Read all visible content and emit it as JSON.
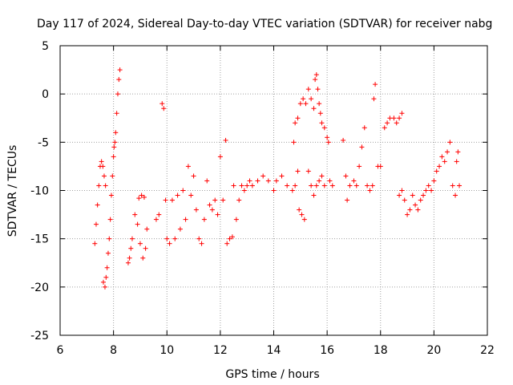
{
  "chart_data": {
    "type": "scatter",
    "title": "Day 117 of 2024, Sidereal Day-to-day VTEC variation (SDTVAR) for receiver nabg",
    "xlabel": "GPS time / hours",
    "ylabel": "SDTVAR / TECUs",
    "xlim": [
      6,
      22
    ],
    "ylim": [
      -25,
      5
    ],
    "x_ticks": [
      6,
      8,
      10,
      12,
      14,
      16,
      18,
      20,
      22
    ],
    "y_ticks": [
      5,
      0,
      -5,
      -10,
      -15,
      -20,
      -25
    ],
    "grid": true,
    "marker": "+",
    "marker_color": "#ff0000",
    "series": [
      {
        "name": "SDTVAR",
        "points": [
          [
            7.3,
            -15.5
          ],
          [
            7.35,
            -13.5
          ],
          [
            7.4,
            -11.5
          ],
          [
            7.45,
            -9.5
          ],
          [
            7.5,
            -7.5
          ],
          [
            7.55,
            -7.0
          ],
          [
            7.6,
            -7.5
          ],
          [
            7.65,
            -8.5
          ],
          [
            7.7,
            -9.5
          ],
          [
            7.62,
            -19.5
          ],
          [
            7.68,
            -20.0
          ],
          [
            7.72,
            -19.0
          ],
          [
            7.76,
            -18.0
          ],
          [
            7.8,
            -16.5
          ],
          [
            7.84,
            -15.0
          ],
          [
            7.88,
            -13.0
          ],
          [
            7.92,
            -10.5
          ],
          [
            7.96,
            -8.5
          ],
          [
            8.0,
            -6.5
          ],
          [
            8.02,
            -5.5
          ],
          [
            8.05,
            -5.0
          ],
          [
            8.08,
            -4.0
          ],
          [
            8.12,
            -2.0
          ],
          [
            8.16,
            0.0
          ],
          [
            8.2,
            1.5
          ],
          [
            8.24,
            2.5
          ],
          [
            8.55,
            -17.5
          ],
          [
            8.6,
            -17.0
          ],
          [
            8.65,
            -16.0
          ],
          [
            8.7,
            -15.0
          ],
          [
            8.8,
            -12.5
          ],
          [
            8.9,
            -13.5
          ],
          [
            9.0,
            -15.5
          ],
          [
            9.1,
            -17.0
          ],
          [
            9.2,
            -16.0
          ],
          [
            9.25,
            -14.0
          ],
          [
            8.95,
            -10.8
          ],
          [
            9.05,
            -10.5
          ],
          [
            9.15,
            -10.7
          ],
          [
            9.6,
            -13.0
          ],
          [
            9.7,
            -12.5
          ],
          [
            9.82,
            -1.0
          ],
          [
            9.88,
            -1.5
          ],
          [
            9.95,
            -11.0
          ],
          [
            10.0,
            -15.0
          ],
          [
            10.1,
            -15.5
          ],
          [
            10.2,
            -11.0
          ],
          [
            10.3,
            -15.0
          ],
          [
            10.4,
            -10.5
          ],
          [
            10.5,
            -14.0
          ],
          [
            10.6,
            -10.0
          ],
          [
            10.7,
            -13.0
          ],
          [
            10.8,
            -7.5
          ],
          [
            10.9,
            -10.5
          ],
          [
            11.0,
            -8.5
          ],
          [
            11.1,
            -12.0
          ],
          [
            11.2,
            -15.0
          ],
          [
            11.3,
            -15.5
          ],
          [
            11.4,
            -13.0
          ],
          [
            11.5,
            -9.0
          ],
          [
            11.6,
            -11.5
          ],
          [
            11.7,
            -12.0
          ],
          [
            11.8,
            -11.0
          ],
          [
            11.9,
            -12.5
          ],
          [
            12.0,
            -6.5
          ],
          [
            12.1,
            -11.0
          ],
          [
            12.2,
            -4.8
          ],
          [
            12.25,
            -15.5
          ],
          [
            12.35,
            -15.0
          ],
          [
            12.45,
            -14.8
          ],
          [
            12.5,
            -9.5
          ],
          [
            12.6,
            -13.0
          ],
          [
            12.7,
            -11.0
          ],
          [
            12.8,
            -9.5
          ],
          [
            12.9,
            -10.0
          ],
          [
            13.0,
            -9.5
          ],
          [
            13.1,
            -9.0
          ],
          [
            13.2,
            -9.5
          ],
          [
            13.4,
            -9.0
          ],
          [
            13.6,
            -8.5
          ],
          [
            13.8,
            -9.0
          ],
          [
            14.0,
            -10.0
          ],
          [
            14.1,
            -9.0
          ],
          [
            14.3,
            -8.5
          ],
          [
            14.5,
            -9.5
          ],
          [
            14.7,
            -10.0
          ],
          [
            14.8,
            -9.5
          ],
          [
            14.9,
            -8.0
          ],
          [
            14.95,
            -12.0
          ],
          [
            15.05,
            -12.5
          ],
          [
            15.15,
            -13.0
          ],
          [
            15.3,
            -8.0
          ],
          [
            15.4,
            -9.5
          ],
          [
            15.5,
            -10.5
          ],
          [
            15.6,
            -9.5
          ],
          [
            15.7,
            -9.0
          ],
          [
            15.8,
            -8.5
          ],
          [
            15.9,
            -9.5
          ],
          [
            14.75,
            -5.0
          ],
          [
            14.8,
            -3.0
          ],
          [
            14.9,
            -2.5
          ],
          [
            15.0,
            -1.0
          ],
          [
            15.1,
            -0.5
          ],
          [
            15.2,
            -1.0
          ],
          [
            15.3,
            0.5
          ],
          [
            15.4,
            -0.5
          ],
          [
            15.5,
            -1.5
          ],
          [
            15.55,
            1.5
          ],
          [
            15.6,
            2.0
          ],
          [
            15.65,
            0.5
          ],
          [
            15.7,
            -1.0
          ],
          [
            15.75,
            -2.0
          ],
          [
            15.8,
            -3.0
          ],
          [
            15.9,
            -3.5
          ],
          [
            16.0,
            -4.5
          ],
          [
            16.05,
            -5.0
          ],
          [
            16.1,
            -9.0
          ],
          [
            16.2,
            -9.5
          ],
          [
            16.6,
            -4.8
          ],
          [
            16.7,
            -8.5
          ],
          [
            16.75,
            -11.0
          ],
          [
            16.85,
            -9.5
          ],
          [
            17.0,
            -9.0
          ],
          [
            17.1,
            -9.5
          ],
          [
            17.2,
            -7.5
          ],
          [
            17.3,
            -5.5
          ],
          [
            17.4,
            -3.5
          ],
          [
            17.5,
            -9.5
          ],
          [
            17.6,
            -10.0
          ],
          [
            17.7,
            -9.5
          ],
          [
            17.75,
            -0.5
          ],
          [
            17.8,
            1.0
          ],
          [
            17.9,
            -7.5
          ],
          [
            18.0,
            -7.5
          ],
          [
            18.15,
            -3.5
          ],
          [
            18.25,
            -3.0
          ],
          [
            18.35,
            -2.5
          ],
          [
            18.5,
            -2.5
          ],
          [
            18.6,
            -3.0
          ],
          [
            18.7,
            -2.5
          ],
          [
            18.8,
            -2.0
          ],
          [
            18.7,
            -10.5
          ],
          [
            18.8,
            -10.0
          ],
          [
            18.9,
            -11.0
          ],
          [
            19.0,
            -12.5
          ],
          [
            19.1,
            -12.0
          ],
          [
            19.2,
            -10.5
          ],
          [
            19.3,
            -11.5
          ],
          [
            19.4,
            -12.0
          ],
          [
            19.5,
            -11.0
          ],
          [
            19.6,
            -10.5
          ],
          [
            19.7,
            -10.0
          ],
          [
            19.8,
            -9.5
          ],
          [
            19.9,
            -10.0
          ],
          [
            20.0,
            -9.0
          ],
          [
            20.1,
            -8.0
          ],
          [
            20.2,
            -7.5
          ],
          [
            20.3,
            -6.5
          ],
          [
            20.4,
            -7.0
          ],
          [
            20.5,
            -6.0
          ],
          [
            20.6,
            -5.0
          ],
          [
            20.7,
            -9.5
          ],
          [
            20.8,
            -10.5
          ],
          [
            20.85,
            -7.0
          ],
          [
            20.9,
            -6.0
          ],
          [
            20.95,
            -9.5
          ]
        ]
      }
    ]
  }
}
